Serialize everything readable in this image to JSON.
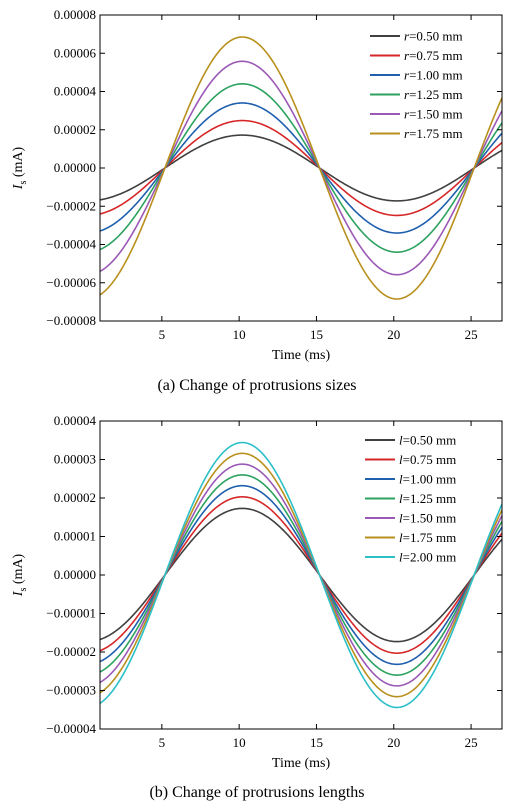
{
  "chart_data": [
    {
      "type": "line",
      "caption": "(a) Change of protrusions sizes",
      "xlabel": "Time (ms)",
      "ylabel_main": "I",
      "ylabel_sub": "s",
      "ylabel_unit": " (mA)",
      "xlim": [
        1,
        27
      ],
      "ylim": [
        -8e-05,
        8e-05
      ],
      "xticks": [
        5,
        10,
        15,
        20,
        25
      ],
      "yticks": [
        "0.00008",
        "0.00006",
        "0.00004",
        "0.00002",
        "0.00000",
        "−0.00002",
        "−0.00004",
        "−0.00006",
        "−0.00008"
      ],
      "ytick_values": [
        8e-05,
        6e-05,
        4e-05,
        2e-05,
        0,
        -2e-05,
        -4e-05,
        -6e-05,
        -8e-05
      ],
      "grid": false,
      "legend_position": "top-right",
      "waveform": {
        "period_ms": 20,
        "zero_ms": 5.2
      },
      "series": [
        {
          "legend_var": "r",
          "legend_text": "=0.50 mm",
          "amplitude": 1.72e-05,
          "color": "#404040"
        },
        {
          "legend_var": "r",
          "legend_text": "=0.75 mm",
          "amplitude": 2.48e-05,
          "color": "#d62728"
        },
        {
          "legend_var": "r",
          "legend_text": "=1.00 mm",
          "amplitude": 3.4e-05,
          "color": "#1f5fae"
        },
        {
          "legend_var": "r",
          "legend_text": "=1.25 mm",
          "amplitude": 4.4e-05,
          "color": "#2ca25f"
        },
        {
          "legend_var": "r",
          "legend_text": "=1.50 mm",
          "amplitude": 5.58e-05,
          "color": "#9b59b6"
        },
        {
          "legend_var": "r",
          "legend_text": "=1.75 mm",
          "amplitude": 6.85e-05,
          "color": "#b8901d"
        }
      ]
    },
    {
      "type": "line",
      "caption": "(b) Change of protrusions lengths",
      "xlabel": "Time (ms)",
      "ylabel_main": "I",
      "ylabel_sub": "s",
      "ylabel_unit": " (mA)",
      "xlim": [
        1,
        27
      ],
      "ylim": [
        -4e-05,
        4e-05
      ],
      "xticks": [
        5,
        10,
        15,
        20,
        25
      ],
      "yticks": [
        "0.00004",
        "0.00003",
        "0.00002",
        "0.00001",
        "0.00000",
        "−0.00001",
        "−0.00002",
        "−0.00003",
        "−0.00004"
      ],
      "ytick_values": [
        4e-05,
        3e-05,
        2e-05,
        1e-05,
        0,
        -1e-05,
        -2e-05,
        -3e-05,
        -4e-05
      ],
      "grid": false,
      "legend_position": "top-right",
      "waveform": {
        "period_ms": 20,
        "zero_ms": 5.2
      },
      "series": [
        {
          "legend_var": "l",
          "legend_text": "=0.50 mm",
          "amplitude": 1.73e-05,
          "color": "#404040"
        },
        {
          "legend_var": "l",
          "legend_text": "=0.75 mm",
          "amplitude": 2.03e-05,
          "color": "#d62728"
        },
        {
          "legend_var": "l",
          "legend_text": "=1.00 mm",
          "amplitude": 2.32e-05,
          "color": "#1f5fae"
        },
        {
          "legend_var": "l",
          "legend_text": "=1.25 mm",
          "amplitude": 2.6e-05,
          "color": "#2ca25f"
        },
        {
          "legend_var": "l",
          "legend_text": "=1.50 mm",
          "amplitude": 2.88e-05,
          "color": "#9b59b6"
        },
        {
          "legend_var": "l",
          "legend_text": "=1.75 mm",
          "amplitude": 3.16e-05,
          "color": "#b8901d"
        },
        {
          "legend_var": "l",
          "legend_text": "=2.00 mm",
          "amplitude": 3.44e-05,
          "color": "#2bbfc8"
        }
      ]
    }
  ]
}
